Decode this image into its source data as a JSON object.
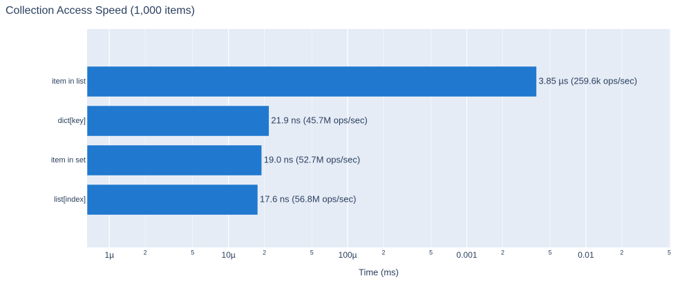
{
  "chart_data": {
    "type": "bar",
    "orientation": "horizontal",
    "title": "Collection Access Speed (1,000 items)",
    "x_label": "Time (ms)",
    "categories": [
      "item in list",
      "dict[key]",
      "item in set",
      "list[index]"
    ],
    "values": [
      0.00385,
      2.19e-05,
      1.9e-05,
      1.76e-05
    ],
    "value_labels": [
      "3.85 µs (259.6k ops/sec)",
      "21.9 ns (45.7M ops/sec)",
      "19.0 ns (52.7M ops/sec)",
      "17.6 ns (56.8M ops/sec)"
    ],
    "color": "#2079cf",
    "xscale": "log",
    "xlim": [
      6.5e-07,
      0.051
    ],
    "xticks": [
      {
        "value": 1e-06,
        "label": "1µ"
      },
      {
        "value": 2e-06,
        "label": "2"
      },
      {
        "value": 5e-06,
        "label": "5"
      },
      {
        "value": 1e-05,
        "label": "10µ"
      },
      {
        "value": 2e-05,
        "label": "2"
      },
      {
        "value": 5e-05,
        "label": "5"
      },
      {
        "value": 0.0001,
        "label": "100µ"
      },
      {
        "value": 0.0002,
        "label": "2"
      },
      {
        "value": 0.0005,
        "label": "5"
      },
      0.001,
      {
        "value": 0.002,
        "label": "2"
      },
      {
        "value": 0.005,
        "label": "5"
      },
      0.01,
      {
        "value": 0.02,
        "label": "2"
      },
      {
        "value": 0.05,
        "label": "5"
      }
    ],
    "grid": true
  }
}
